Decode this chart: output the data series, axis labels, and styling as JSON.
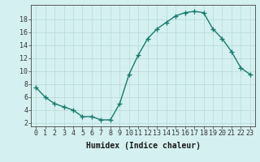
{
  "x": [
    0,
    1,
    2,
    3,
    4,
    5,
    6,
    7,
    8,
    9,
    10,
    11,
    12,
    13,
    14,
    15,
    16,
    17,
    18,
    19,
    20,
    21,
    22,
    23
  ],
  "y": [
    7.5,
    6.0,
    5.0,
    4.5,
    4.0,
    3.0,
    3.0,
    2.5,
    2.5,
    5.0,
    9.5,
    12.5,
    15.0,
    16.5,
    17.5,
    18.5,
    19.0,
    19.2,
    19.0,
    16.5,
    15.0,
    13.0,
    10.5,
    9.5
  ],
  "line_color": "#1a7a6e",
  "marker": "+",
  "markersize": 4,
  "linewidth": 1.0,
  "bg_color": "#d4f0f0",
  "grid_color": "#b8d8d8",
  "xlabel": "Humidex (Indice chaleur)",
  "xlabel_fontsize": 7,
  "ylabel_ticks": [
    2,
    4,
    6,
    8,
    10,
    12,
    14,
    16,
    18
  ],
  "xtick_labels": [
    "0",
    "1",
    "2",
    "3",
    "4",
    "5",
    "6",
    "7",
    "8",
    "9",
    "10",
    "11",
    "12",
    "13",
    "14",
    "15",
    "16",
    "17",
    "18",
    "19",
    "20",
    "21",
    "22",
    "23"
  ],
  "ylim": [
    1.5,
    20.2
  ],
  "xlim": [
    -0.5,
    23.5
  ],
  "tick_fontsize": 6
}
